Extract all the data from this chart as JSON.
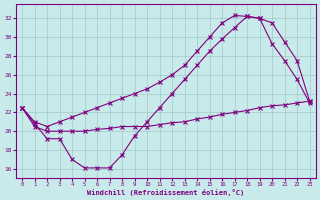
{
  "bg_color": "#c8eaea",
  "grid_color": "#a0c8c8",
  "line_color": "#800080",
  "marker": "x",
  "xlabel": "Windchill (Refroidissement éolien,°C)",
  "ylim": [
    15,
    33.5
  ],
  "xlim": [
    -0.5,
    23.5
  ],
  "yticks": [
    16,
    18,
    20,
    22,
    24,
    26,
    28,
    30,
    32
  ],
  "xticks": [
    0,
    1,
    2,
    3,
    4,
    5,
    6,
    7,
    8,
    9,
    10,
    11,
    12,
    13,
    14,
    15,
    16,
    17,
    18,
    19,
    20,
    21,
    22,
    23
  ],
  "curve1_x": [
    0,
    1,
    2,
    3,
    4,
    5,
    6,
    7,
    8,
    9,
    10,
    11,
    12,
    13,
    14,
    15,
    16,
    17,
    18,
    19,
    20,
    21,
    22,
    23
  ],
  "curve1_y": [
    22.5,
    21.0,
    20.5,
    21.0,
    21.5,
    22.0,
    22.5,
    23.0,
    23.5,
    24.0,
    24.5,
    25.2,
    26.0,
    27.0,
    28.5,
    30.0,
    31.5,
    32.3,
    32.2,
    32.0,
    31.5,
    29.5,
    27.5,
    23.2
  ],
  "curve2_x": [
    0,
    1,
    2,
    3,
    4,
    5,
    6,
    7,
    8,
    9,
    10,
    11,
    12,
    13,
    14,
    15,
    16,
    17,
    18,
    19,
    20,
    21,
    22,
    23
  ],
  "curve2_y": [
    22.5,
    20.8,
    19.2,
    19.2,
    17.0,
    16.1,
    16.1,
    16.1,
    17.5,
    19.5,
    21.0,
    22.5,
    24.0,
    25.5,
    27.0,
    28.5,
    29.8,
    31.0,
    32.2,
    32.0,
    29.3,
    27.5,
    25.5,
    23.0
  ],
  "curve3_x": [
    0,
    1,
    2,
    3,
    4,
    5,
    6,
    7,
    8,
    9,
    10,
    11,
    12,
    13,
    14,
    15,
    16,
    17,
    18,
    19,
    20,
    21,
    22,
    23
  ],
  "curve3_y": [
    22.5,
    20.5,
    20.0,
    20.0,
    20.0,
    20.0,
    20.2,
    20.3,
    20.5,
    20.5,
    20.5,
    20.7,
    20.9,
    21.0,
    21.3,
    21.5,
    21.8,
    22.0,
    22.2,
    22.5,
    22.7,
    22.8,
    23.0,
    23.2
  ]
}
